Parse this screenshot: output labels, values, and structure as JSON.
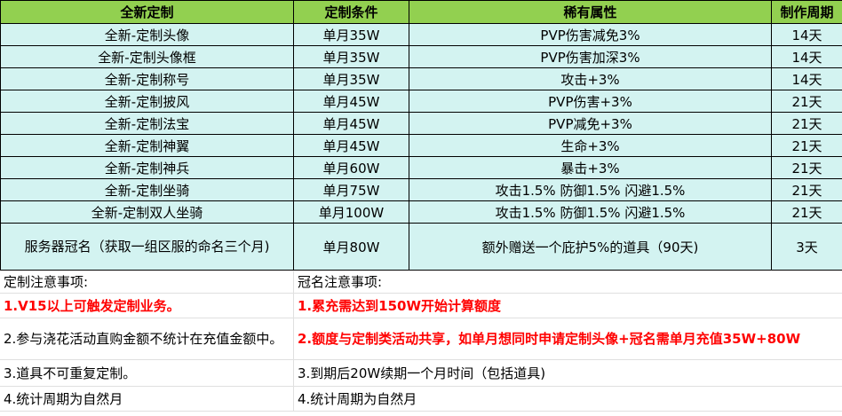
{
  "headers": [
    "全新定制",
    "定制条件",
    "稀有属性",
    "制作周期"
  ],
  "rows": [
    [
      "全新-定制头像",
      "单月35W",
      "PVP伤害减免3%",
      "14天"
    ],
    [
      "全新-定制头像框",
      "单月35W",
      "PVP伤害加深3%",
      "14天"
    ],
    [
      "全新-定制称号",
      "单月35W",
      "攻击+3%",
      "14天"
    ],
    [
      "全新-定制披风",
      "单月45W",
      "PVP伤害+3%",
      "21天"
    ],
    [
      "全新-定制法宝",
      "单月45W",
      "PVP减免+3%",
      "21天"
    ],
    [
      "全新-定制神翼",
      "单月45W",
      "生命+3%",
      "21天"
    ],
    [
      "全新-定制神兵",
      "单月60W",
      "暴击+3%",
      "21天"
    ],
    [
      "全新-定制坐骑",
      "单月75W",
      "攻击1.5%  防御1.5%  闪避1.5%",
      "21天"
    ],
    [
      "全新-定制双人坐骑",
      "单月100W",
      "攻击1.5%  防御1.5%  闪避1.5%",
      "21天"
    ],
    [
      "服务器冠名（获取一组区服的命名三个月)",
      "单月80W",
      "额外赠送一个庇护5%的道具（90天)",
      "3天"
    ]
  ],
  "notes": {
    "left": [
      "定制注意事项:",
      "1.V15以上可触发定制业务。",
      "2.参与浇花活动直购金额不统计在充值金额中。",
      "3.道具不可重复定制。",
      "4.统计周期为自然月"
    ],
    "right": [
      "冠名注意事项:",
      "1.累充需达到150W开始计算额度",
      "2.额度与定制类活动共享，如单月想同时申请定制头像+冠名需单月充值35W+80W",
      "3.到期后20W续期一个月时间（包括道具)",
      "4.统计周期为自然月"
    ]
  },
  "colors": {
    "header": "#92d050",
    "cell": "#d3f3f1",
    "highlight": "#ff0000"
  }
}
